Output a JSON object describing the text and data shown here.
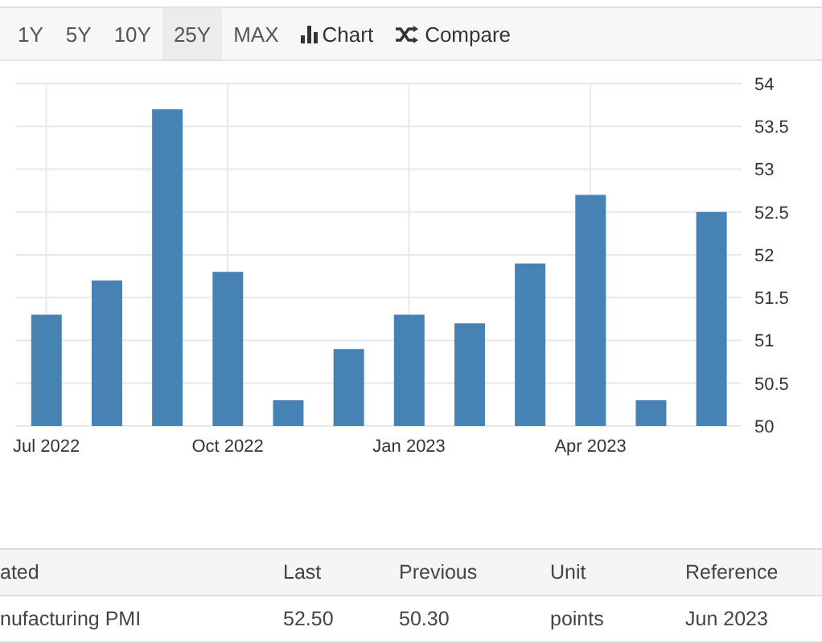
{
  "chart_data": {
    "type": "bar",
    "categories": [
      "Jul 2022",
      null,
      null,
      "Oct 2022",
      null,
      null,
      "Jan 2023",
      null,
      null,
      "Apr 2023",
      null,
      null
    ],
    "values": [
      51.3,
      51.7,
      53.7,
      51.8,
      50.3,
      50.9,
      51.3,
      51.2,
      51.9,
      52.7,
      50.3,
      52.5
    ],
    "color": "#4682b4",
    "ylim": [
      50,
      54
    ],
    "yticks": [
      50,
      50.5,
      51,
      51.5,
      52,
      52.5,
      53,
      53.5,
      54
    ],
    "grid": true,
    "legend": false,
    "annotations": [
      "1Y",
      "5Y",
      "10Y",
      "25Y",
      "MAX",
      "Chart",
      "Compare",
      "ated",
      "Last",
      "Previous",
      "Unit",
      "Reference",
      "nufacturing PMI",
      "52.50",
      "50.30",
      "points",
      "Jun 2023"
    ]
  }
}
